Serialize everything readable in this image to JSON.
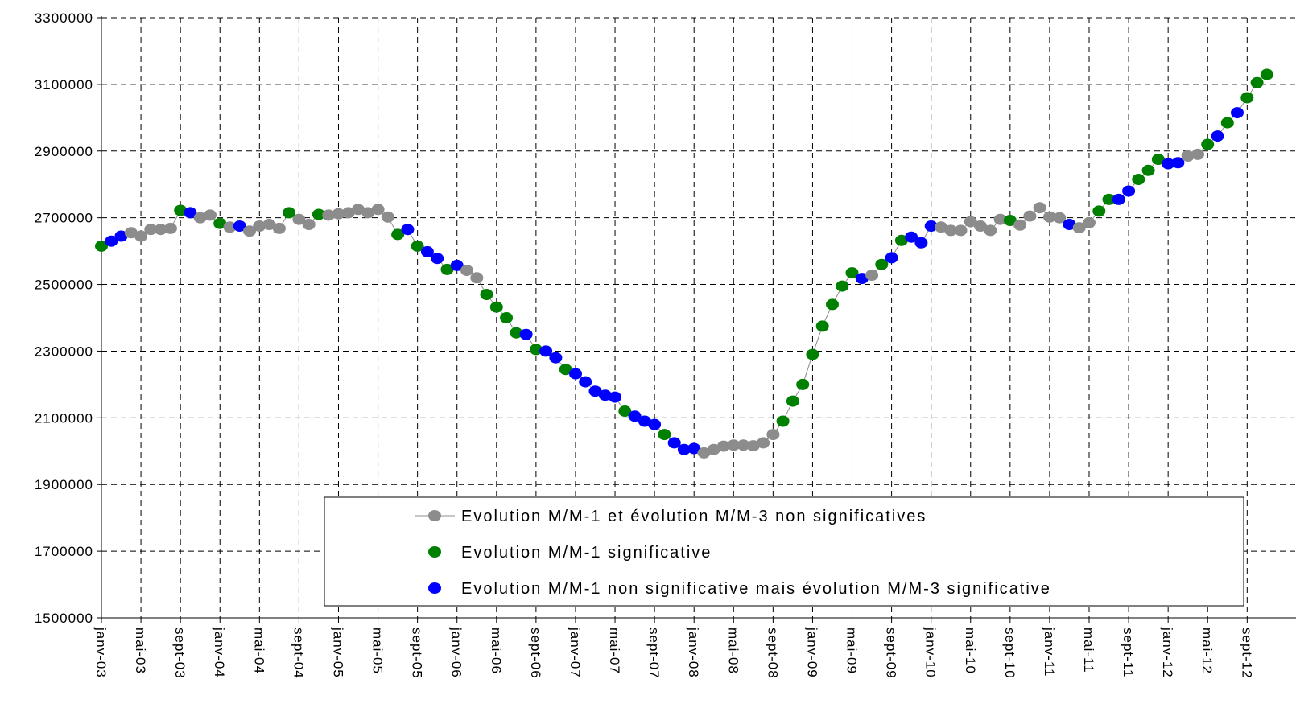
{
  "chart_data": {
    "type": "scatter",
    "title": "",
    "xlabel": "",
    "ylabel": "",
    "ylim": [
      1500000,
      3300000
    ],
    "y_ticks": [
      1500000,
      1700000,
      1900000,
      2100000,
      2300000,
      2500000,
      2700000,
      2900000,
      3100000,
      3300000
    ],
    "x_start": "janv-03",
    "x_ticks": [
      "janv-03",
      "mai-03",
      "sept-03",
      "janv-04",
      "mai-04",
      "sept-04",
      "janv-05",
      "mai-05",
      "sept-05",
      "janv-06",
      "mai-06",
      "sept-06",
      "janv-07",
      "mai-07",
      "sept-07",
      "janv-08",
      "mai-08",
      "sept-08",
      "janv-09",
      "mai-09",
      "sept-09",
      "janv-10",
      "mai-10",
      "sept-10",
      "janv-11",
      "mai-11",
      "sept-11",
      "janv-12",
      "mai-12",
      "sept-12"
    ],
    "grid": true,
    "legend_position": "bottom-center",
    "colors": {
      "gray": "#8c8c8c",
      "green": "#008000",
      "blue": "#0000ff",
      "line": "#8c8c8c"
    },
    "legend": [
      {
        "label": "Evolution M/M-1 et évolution M/M-3 non significatives",
        "color": "gray",
        "marker": "line-dot"
      },
      {
        "label": "Evolution M/M-1 significative",
        "color": "green",
        "marker": "dot"
      },
      {
        "label": "Evolution M/M-1 non significative mais évolution M/M-3 significative",
        "color": "blue",
        "marker": "dot"
      }
    ],
    "values": [
      2615000,
      2630000,
      2645000,
      2655000,
      2645000,
      2665000,
      2665000,
      2668000,
      2722000,
      2715000,
      2700000,
      2708000,
      2683000,
      2672000,
      2675000,
      2660000,
      2675000,
      2680000,
      2668000,
      2715000,
      2695000,
      2680000,
      2710000,
      2708000,
      2712000,
      2715000,
      2725000,
      2715000,
      2725000,
      2702000,
      2650000,
      2665000,
      2615000,
      2598000,
      2578000,
      2545000,
      2557000,
      2542000,
      2520000,
      2470000,
      2432000,
      2400000,
      2355000,
      2350000,
      2305000,
      2300000,
      2280000,
      2245000,
      2232000,
      2208000,
      2180000,
      2168000,
      2162000,
      2120000,
      2105000,
      2090000,
      2080000,
      2050000,
      2025000,
      2005000,
      2008000,
      1995000,
      2005000,
      2015000,
      2018000,
      2018000,
      2016000,
      2025000,
      2050000,
      2090000,
      2150000,
      2200000,
      2290000,
      2375000,
      2440000,
      2495000,
      2535000,
      2518000,
      2528000,
      2560000,
      2580000,
      2632000,
      2642000,
      2625000,
      2675000,
      2672000,
      2662000,
      2662000,
      2688000,
      2675000,
      2662000,
      2695000,
      2692000,
      2678000,
      2705000,
      2730000,
      2702000,
      2700000,
      2680000,
      2670000,
      2685000,
      2720000,
      2755000,
      2755000,
      2780000,
      2815000,
      2842000,
      2875000,
      2862000,
      2865000,
      2885000,
      2890000,
      2920000,
      2945000,
      2985000,
      3015000,
      3060000,
      3105000,
      3130000
    ],
    "point_colors": [
      "green",
      "blue",
      "blue",
      "gray",
      "gray",
      "gray",
      "gray",
      "gray",
      "green",
      "blue",
      "gray",
      "gray",
      "green",
      "gray",
      "blue",
      "gray",
      "gray",
      "gray",
      "gray",
      "green",
      "gray",
      "gray",
      "green",
      "gray",
      "gray",
      "gray",
      "gray",
      "gray",
      "gray",
      "gray",
      "green",
      "blue",
      "green",
      "blue",
      "blue",
      "green",
      "blue",
      "gray",
      "gray",
      "green",
      "green",
      "green",
      "green",
      "blue",
      "green",
      "blue",
      "blue",
      "green",
      "blue",
      "blue",
      "blue",
      "blue",
      "blue",
      "green",
      "blue",
      "blue",
      "blue",
      "green",
      "blue",
      "blue",
      "blue",
      "gray",
      "gray",
      "gray",
      "gray",
      "gray",
      "gray",
      "gray",
      "gray",
      "green",
      "green",
      "green",
      "green",
      "green",
      "green",
      "green",
      "green",
      "blue",
      "gray",
      "green",
      "blue",
      "green",
      "blue",
      "blue",
      "blue",
      "gray",
      "gray",
      "gray",
      "gray",
      "gray",
      "gray",
      "gray",
      "green",
      "gray",
      "gray",
      "gray",
      "gray",
      "gray",
      "blue",
      "gray",
      "gray",
      "green",
      "green",
      "blue",
      "blue",
      "green",
      "green",
      "green",
      "blue",
      "blue",
      "gray",
      "gray",
      "green",
      "blue",
      "green",
      "blue",
      "green",
      "green",
      "green"
    ]
  }
}
